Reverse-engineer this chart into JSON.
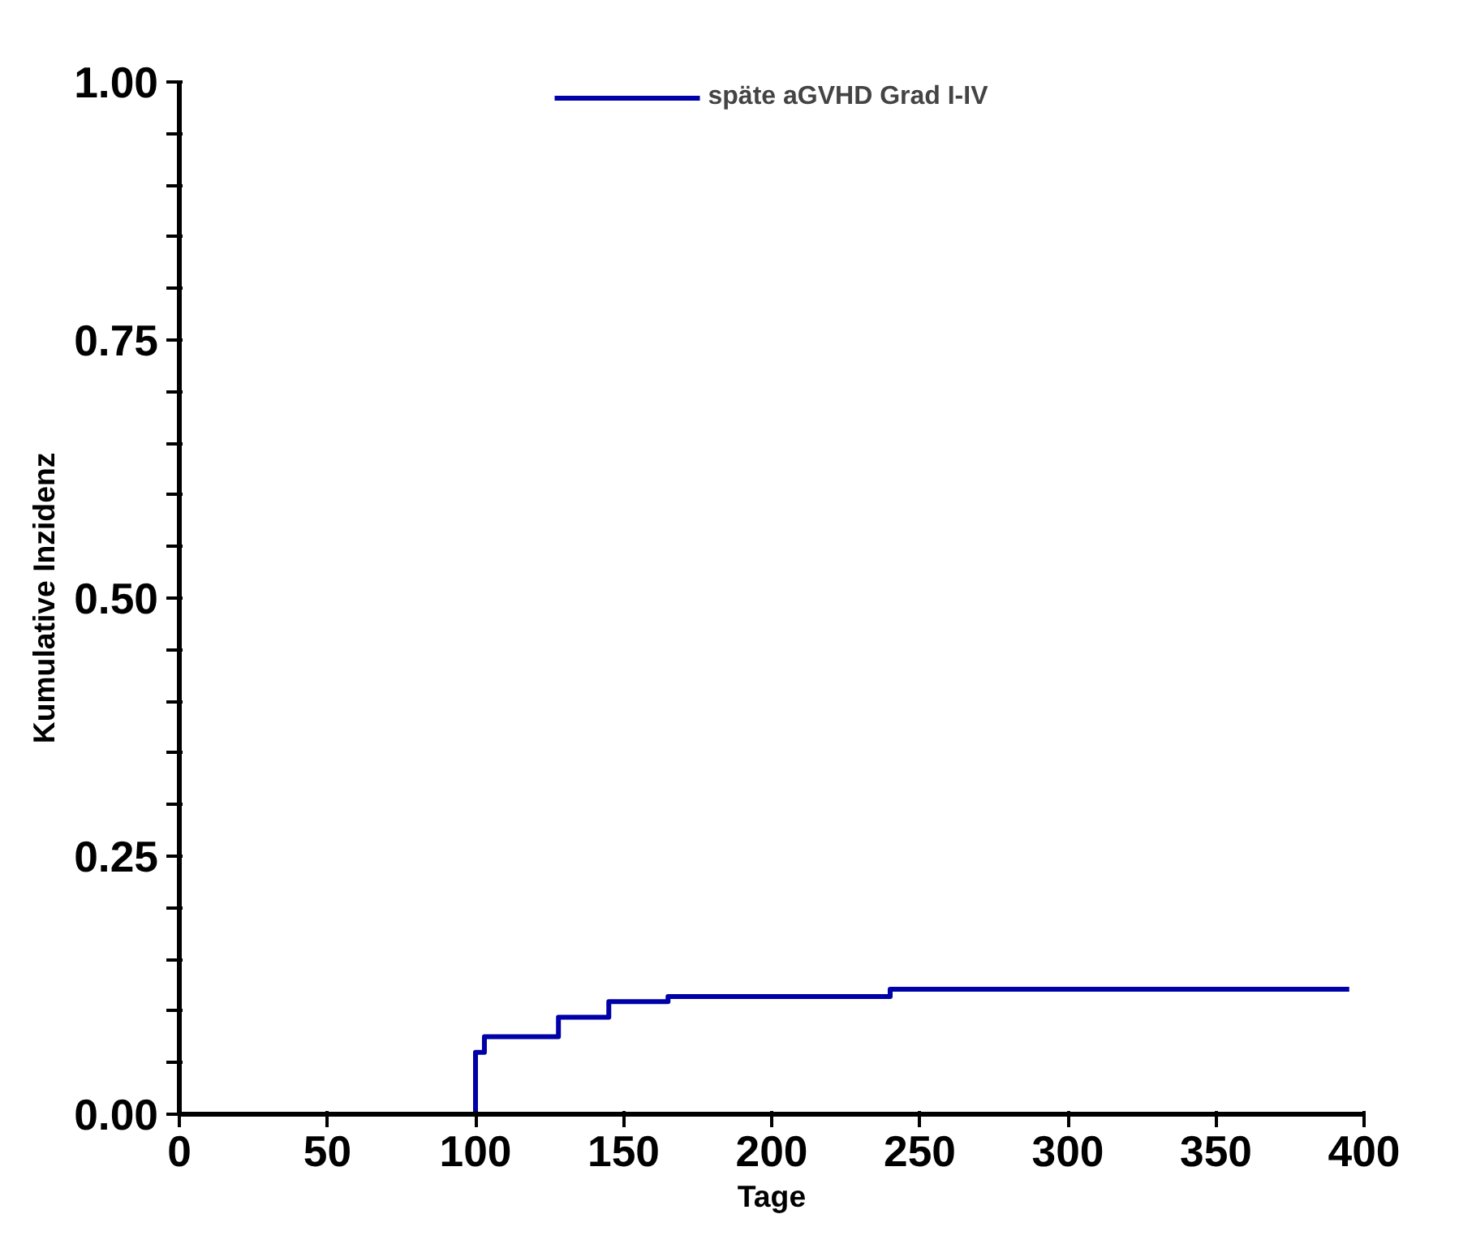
{
  "chart_data": {
    "type": "step",
    "xlabel": "Tage",
    "ylabel": "Kumulative Inzidenz",
    "x": [
      0,
      100,
      100,
      103,
      128,
      145,
      165,
      240,
      395
    ],
    "series": [
      {
        "name": "späte aGVHD Grad I-IV",
        "color": "#0000a8",
        "values": [
          0,
          0,
          0.06,
          0.075,
          0.094,
          0.109,
          0.114,
          0.121,
          0.121
        ]
      }
    ],
    "xlim": [
      0,
      400
    ],
    "ylim": [
      0,
      1
    ],
    "xticks": [
      0,
      50,
      100,
      150,
      200,
      250,
      300,
      350,
      400
    ],
    "yticks": [
      {
        "value": 0,
        "label": "0.00"
      },
      {
        "value": 0.05,
        "label": null
      },
      {
        "value": 0.1,
        "label": null
      },
      {
        "value": 0.15,
        "label": null
      },
      {
        "value": 0.2,
        "label": null
      },
      {
        "value": 0.25,
        "label": "0.25"
      },
      {
        "value": 0.3,
        "label": null
      },
      {
        "value": 0.35,
        "label": null
      },
      {
        "value": 0.4,
        "label": null
      },
      {
        "value": 0.45,
        "label": null
      },
      {
        "value": 0.5,
        "label": "0.50"
      },
      {
        "value": 0.55,
        "label": null
      },
      {
        "value": 0.6,
        "label": null
      },
      {
        "value": 0.65,
        "label": null
      },
      {
        "value": 0.7,
        "label": null
      },
      {
        "value": 0.75,
        "label": "0.75"
      },
      {
        "value": 0.8,
        "label": null
      },
      {
        "value": 0.85,
        "label": null
      },
      {
        "value": 0.9,
        "label": null
      },
      {
        "value": 0.95,
        "label": null
      },
      {
        "value": 1,
        "label": "1.00"
      }
    ],
    "grid": false,
    "legend": "top"
  }
}
